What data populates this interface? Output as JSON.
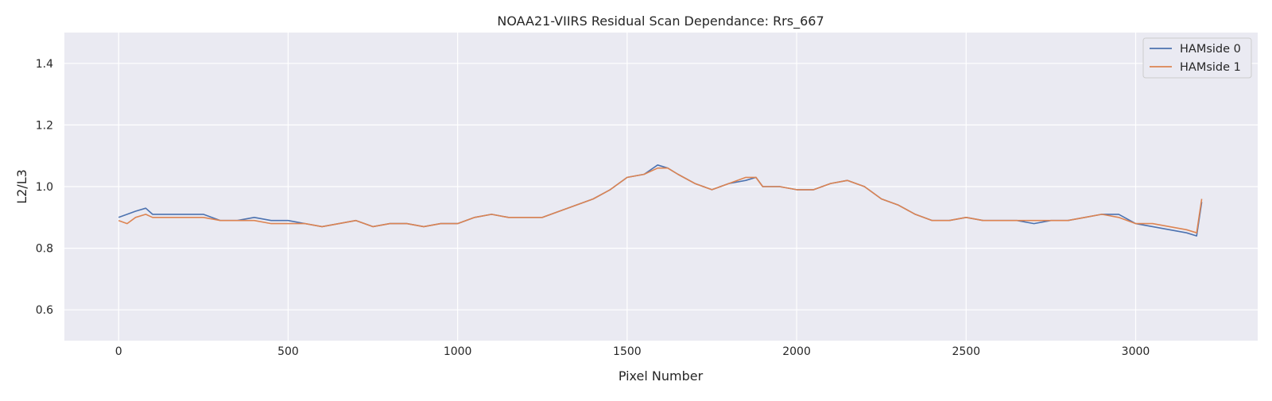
{
  "chart_data": {
    "type": "line",
    "title": "NOAA21-VIIRS Residual Scan Dependance: Rrs_667",
    "xlabel": "Pixel Number",
    "ylabel": "L2/L3",
    "xlim": [
      -160,
      3360
    ],
    "ylim": [
      0.5,
      1.5
    ],
    "xticks": [
      0,
      500,
      1000,
      1500,
      2000,
      2500,
      3000
    ],
    "yticks": [
      0.6,
      0.8,
      1.0,
      1.2,
      1.4
    ],
    "xtick_labels": [
      "0",
      "500",
      "1000",
      "1500",
      "2000",
      "2500",
      "3000"
    ],
    "ytick_labels": [
      "0.6",
      "0.8",
      "1.0",
      "1.2",
      "1.4"
    ],
    "grid": true,
    "legend_position": "top-right",
    "series": [
      {
        "name": "HAMside 0",
        "color": "#4c72b0",
        "x": [
          0,
          25,
          50,
          80,
          100,
          150,
          200,
          250,
          300,
          350,
          400,
          450,
          500,
          550,
          600,
          650,
          700,
          750,
          800,
          850,
          900,
          950,
          1000,
          1050,
          1100,
          1150,
          1200,
          1250,
          1300,
          1350,
          1400,
          1450,
          1500,
          1550,
          1590,
          1620,
          1650,
          1700,
          1750,
          1800,
          1850,
          1880,
          1900,
          1950,
          2000,
          2050,
          2100,
          2150,
          2200,
          2250,
          2300,
          2350,
          2400,
          2450,
          2500,
          2550,
          2600,
          2650,
          2700,
          2750,
          2800,
          2850,
          2900,
          2950,
          3000,
          3050,
          3100,
          3150,
          3180,
          3195
        ],
        "y": [
          0.9,
          0.91,
          0.92,
          0.93,
          0.91,
          0.91,
          0.91,
          0.91,
          0.89,
          0.89,
          0.9,
          0.89,
          0.89,
          0.88,
          0.87,
          0.88,
          0.89,
          0.87,
          0.88,
          0.88,
          0.87,
          0.88,
          0.88,
          0.9,
          0.91,
          0.9,
          0.9,
          0.9,
          0.92,
          0.94,
          0.96,
          0.99,
          1.03,
          1.04,
          1.07,
          1.06,
          1.04,
          1.01,
          0.99,
          1.01,
          1.02,
          1.03,
          1.0,
          1.0,
          0.99,
          0.99,
          1.01,
          1.02,
          1.0,
          0.96,
          0.94,
          0.91,
          0.89,
          0.89,
          0.9,
          0.89,
          0.89,
          0.89,
          0.88,
          0.89,
          0.89,
          0.9,
          0.91,
          0.91,
          0.88,
          0.87,
          0.86,
          0.85,
          0.84,
          0.95
        ]
      },
      {
        "name": "HAMside 1",
        "color": "#dd8452",
        "x": [
          0,
          25,
          50,
          80,
          100,
          150,
          200,
          250,
          300,
          350,
          400,
          450,
          500,
          550,
          600,
          650,
          700,
          750,
          800,
          850,
          900,
          950,
          1000,
          1050,
          1100,
          1150,
          1200,
          1250,
          1300,
          1350,
          1400,
          1450,
          1500,
          1550,
          1590,
          1620,
          1650,
          1700,
          1750,
          1800,
          1850,
          1880,
          1900,
          1950,
          2000,
          2050,
          2100,
          2150,
          2200,
          2250,
          2300,
          2350,
          2400,
          2450,
          2500,
          2550,
          2600,
          2650,
          2700,
          2750,
          2800,
          2850,
          2900,
          2950,
          3000,
          3050,
          3100,
          3150,
          3180,
          3195
        ],
        "y": [
          0.89,
          0.88,
          0.9,
          0.91,
          0.9,
          0.9,
          0.9,
          0.9,
          0.89,
          0.89,
          0.89,
          0.88,
          0.88,
          0.88,
          0.87,
          0.88,
          0.89,
          0.87,
          0.88,
          0.88,
          0.87,
          0.88,
          0.88,
          0.9,
          0.91,
          0.9,
          0.9,
          0.9,
          0.92,
          0.94,
          0.96,
          0.99,
          1.03,
          1.04,
          1.06,
          1.06,
          1.04,
          1.01,
          0.99,
          1.01,
          1.03,
          1.03,
          1.0,
          1.0,
          0.99,
          0.99,
          1.01,
          1.02,
          1.0,
          0.96,
          0.94,
          0.91,
          0.89,
          0.89,
          0.9,
          0.89,
          0.89,
          0.89,
          0.89,
          0.89,
          0.89,
          0.9,
          0.91,
          0.9,
          0.88,
          0.88,
          0.87,
          0.86,
          0.85,
          0.96
        ]
      }
    ]
  }
}
